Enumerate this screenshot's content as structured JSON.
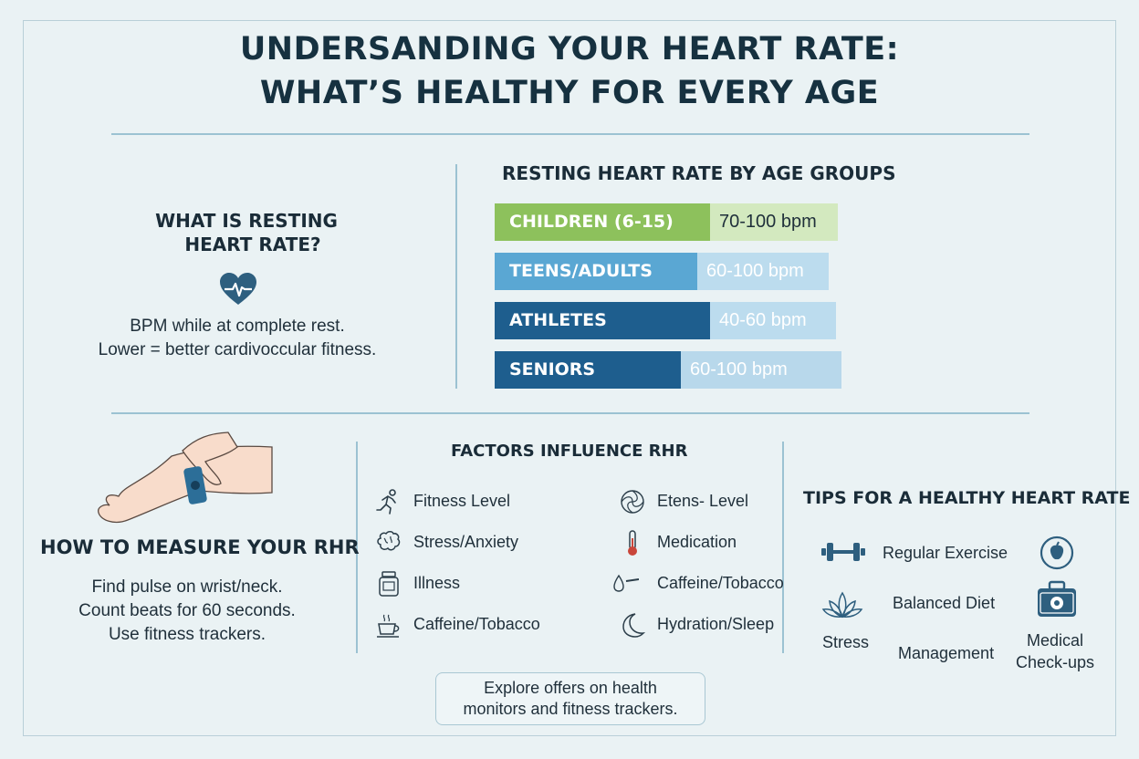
{
  "title": {
    "line1": "UNDERSANDING YOUR HEART RATE:",
    "line2": "WHAT’S HEALTHY FOR EVERY AGE"
  },
  "what_is": {
    "heading_line1": "WHAT IS RESTING",
    "heading_line2": "HEART RATE?",
    "icon": "heart-pulse-icon",
    "desc_line1": "BPM while at complete rest.",
    "desc_line2": "Lower = better cardivoccular fitness."
  },
  "age_groups": {
    "heading": "RESTING HEART RATE BY AGE GROUPS",
    "rows": [
      {
        "label": "CHILDREN (6-15)",
        "range": "70-100 bpm",
        "color": "#8dc15c",
        "light": "#d3e9bf"
      },
      {
        "label": "TEENS/ADULTS",
        "range": "60-100 bpm",
        "color": "#5aa7d3",
        "light": "#bcdcee"
      },
      {
        "label": "ATHLETES",
        "range": "40-60 bpm",
        "color": "#1e5e8e",
        "light": "#bcdcee"
      },
      {
        "label": "SENIORS",
        "range": "60-100 bpm",
        "color": "#1e5e8e",
        "light": "#b8d8eb"
      }
    ]
  },
  "measure": {
    "heading": "HOW TO MEASURE YOUR RHR",
    "icon": "wrist-pulse-icon",
    "steps": [
      "Find pulse on wrist/neck.",
      "Count beats for 60 seconds.",
      "Use fitness trackers."
    ]
  },
  "factors": {
    "heading": "FACTORS INFLUENCE RHR",
    "left": [
      {
        "label": "Fitness Level",
        "icon": "running-icon"
      },
      {
        "label": "Stress/Anxiety",
        "icon": "brain-icon"
      },
      {
        "label": "Illness",
        "icon": "medicine-bottle-icon"
      },
      {
        "label": "Caffeine/Tobacco",
        "icon": "coffee-cup-icon"
      }
    ],
    "right": [
      {
        "label": "Etens- Level",
        "icon": "swirl-icon"
      },
      {
        "label": "Medication",
        "icon": "thermometer-icon"
      },
      {
        "label": "Caffeine/Tobacco",
        "icon": "drop-cigarette-icon"
      },
      {
        "label": "Hydration/Sleep",
        "icon": "moon-icon"
      }
    ]
  },
  "tips": {
    "heading": "TIPS FOR A HEALTHY HEART RATE",
    "regular_exercise": "Regular Exercise",
    "balanced_diet": "Balanced Diet",
    "stress": "Stress",
    "management": "Management",
    "medical_line1": "Medical",
    "medical_line2": "Check-ups"
  },
  "offer": {
    "line1": "Explore offers on health",
    "line2": "monitors and fitness trackers."
  },
  "colors": {
    "accent": "#1e5e8e",
    "green": "#8dc15c",
    "light_blue": "#5aa7d3"
  }
}
